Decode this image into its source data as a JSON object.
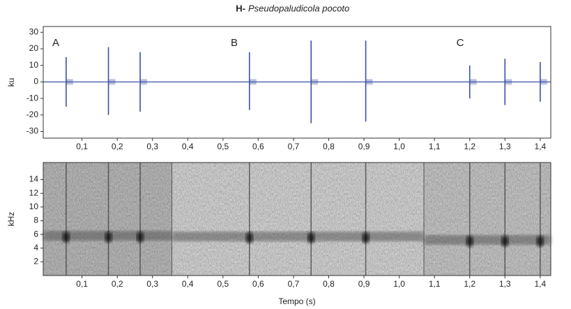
{
  "chart_data": [
    {
      "type": "oscillogram",
      "title_prefix": "H-",
      "title": "Pseudopaludicola pocoto",
      "ylabel": "ku",
      "ylim": [
        -34,
        33.5
      ],
      "yticks": [
        -30,
        -20,
        -10,
        0,
        10,
        20,
        30
      ],
      "xlim": [
        -0.01,
        1.43
      ],
      "xticks": [
        {
          "value": 0.1,
          "label": "0,1"
        },
        {
          "value": 0.2,
          "label": "0,2"
        },
        {
          "value": 0.3,
          "label": "0,3"
        },
        {
          "value": 0.4,
          "label": "0,4"
        },
        {
          "value": 0.5,
          "label": "0,5"
        },
        {
          "value": 0.6,
          "label": "0,6"
        },
        {
          "value": 0.7,
          "label": "0,7"
        },
        {
          "value": 0.8,
          "label": "0,8"
        },
        {
          "value": 0.9,
          "label": "0,9"
        },
        {
          "value": 1.0,
          "label": "1,0"
        },
        {
          "value": 1.1,
          "label": "1,1"
        },
        {
          "value": 1.2,
          "label": "1,2"
        },
        {
          "value": 1.3,
          "label": "1,3"
        },
        {
          "value": 1.4,
          "label": "1,4"
        }
      ],
      "annotations": [
        "A",
        "B",
        "C"
      ],
      "pulse_times": [
        0.055,
        0.175,
        0.265,
        0.575,
        0.75,
        0.905,
        1.2,
        1.3,
        1.4
      ],
      "peaks_pos": [
        15,
        21,
        18,
        18,
        25,
        25,
        10,
        14,
        12
      ],
      "peaks_neg": [
        -15,
        -20,
        -18,
        -17,
        -25,
        -24,
        -10,
        -14,
        -12
      ],
      "color": "#3b4fa6"
    },
    {
      "type": "spectrogram",
      "ylabel": "kHz",
      "xlabel": "Tempo (s)",
      "ylim": [
        0,
        16.5
      ],
      "yticks": [
        2,
        4,
        6,
        8,
        10,
        12,
        14
      ],
      "xlim": [
        -0.01,
        1.43
      ],
      "xticks": [
        {
          "value": 0.1,
          "label": "0,1"
        },
        {
          "value": 0.2,
          "label": "0,2"
        },
        {
          "value": 0.3,
          "label": "0,3"
        },
        {
          "value": 0.4,
          "label": "0,4"
        },
        {
          "value": 0.5,
          "label": "0,5"
        },
        {
          "value": 0.6,
          "label": "0,6"
        },
        {
          "value": 0.7,
          "label": "0,7"
        },
        {
          "value": 0.8,
          "label": "0,8"
        },
        {
          "value": 0.9,
          "label": "0,9"
        },
        {
          "value": 1.0,
          "label": "1,0"
        },
        {
          "value": 1.1,
          "label": "1,1"
        },
        {
          "value": 1.2,
          "label": "1,2"
        },
        {
          "value": 1.3,
          "label": "1,3"
        },
        {
          "value": 1.4,
          "label": "1,4"
        }
      ],
      "segment_edges": [
        0.355,
        1.07
      ],
      "pulse_times": [
        0.055,
        0.175,
        0.265,
        0.575,
        0.75,
        0.905,
        1.2,
        1.3,
        1.4
      ],
      "dominant_frequency": [
        5.6,
        5.6,
        5.6,
        5.5,
        5.5,
        5.5,
        5.0,
        5.0,
        5.0
      ]
    }
  ]
}
